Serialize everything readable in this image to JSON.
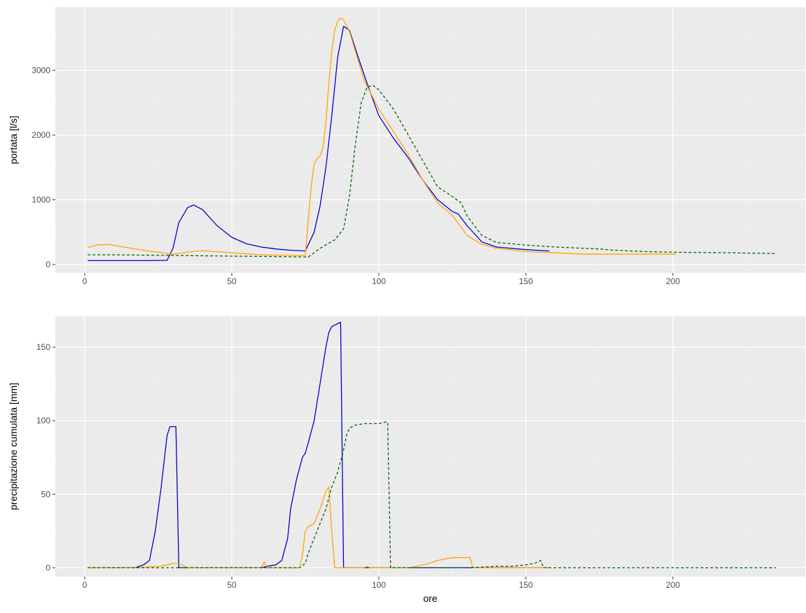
{
  "colors": {
    "panel_background": "#ebebeb",
    "grid_major": "#ffffff",
    "grid_minor": "#f5f5f5",
    "tick_text": "#4d4d4d",
    "axis_title_text": "#000000",
    "series_blue": "#0000cd",
    "series_orange": "#ffa500",
    "series_green": "#006400"
  },
  "chart_data": [
    {
      "type": "line",
      "title": "",
      "xlabel": "",
      "ylabel": "portata [l/s]",
      "xlim": [
        -10,
        245
      ],
      "ylim": [
        -130,
        3980
      ],
      "xticks": [
        0,
        50,
        100,
        150,
        200
      ],
      "xtick_labels": [
        "0",
        "50",
        "100",
        "150",
        "200"
      ],
      "yticks": [
        0,
        1000,
        2000,
        3000
      ],
      "ytick_labels": [
        "0",
        "1000",
        "2000",
        "3000"
      ],
      "grid": true,
      "legend": "none",
      "series": [
        {
          "color": "#0000cd",
          "dash": "solid",
          "x": [
            1,
            20,
            28,
            30,
            32,
            35,
            37,
            40,
            45,
            50,
            55,
            60,
            65,
            70,
            75,
            78,
            80,
            82,
            84,
            86,
            88,
            90,
            93,
            96,
            100,
            105,
            110,
            115,
            120,
            125,
            127,
            130,
            135,
            140,
            145,
            150,
            158
          ],
          "y": [
            60,
            60,
            65,
            250,
            650,
            880,
            920,
            850,
            600,
            420,
            320,
            270,
            240,
            220,
            210,
            500,
            900,
            1500,
            2300,
            3200,
            3680,
            3620,
            3200,
            2800,
            2300,
            1950,
            1650,
            1300,
            1000,
            820,
            780,
            600,
            350,
            270,
            250,
            230,
            210
          ]
        },
        {
          "color": "#ffa500",
          "dash": "solid",
          "x": [
            1,
            4,
            8,
            12,
            20,
            30,
            35,
            40,
            50,
            60,
            70,
            75,
            76,
            77,
            78,
            79,
            80,
            81,
            82,
            83,
            84,
            85,
            86,
            87,
            88,
            90,
            92,
            95,
            100,
            105,
            110,
            115,
            120,
            125,
            130,
            135,
            140,
            150,
            160,
            170,
            175,
            180,
            190,
            200,
            201
          ],
          "y": [
            260,
            300,
            310,
            280,
            220,
            160,
            190,
            215,
            180,
            150,
            140,
            140,
            700,
            1200,
            1550,
            1640,
            1680,
            1800,
            2200,
            2800,
            3300,
            3620,
            3760,
            3810,
            3780,
            3600,
            3300,
            2850,
            2400,
            2050,
            1700,
            1300,
            950,
            760,
            450,
            310,
            250,
            200,
            180,
            160,
            160,
            160,
            160,
            160,
            160
          ]
        },
        {
          "color": "#006400",
          "dash": "dashed",
          "x": [
            1,
            10,
            20,
            30,
            40,
            50,
            60,
            70,
            76,
            80,
            85,
            88,
            90,
            92,
            94,
            96,
            98,
            100,
            105,
            110,
            115,
            120,
            125,
            128,
            130,
            135,
            140,
            150,
            160,
            170,
            175,
            180,
            190,
            200,
            210,
            220,
            235
          ],
          "y": [
            150,
            150,
            145,
            140,
            135,
            130,
            125,
            120,
            115,
            250,
            380,
            550,
            1050,
            1850,
            2500,
            2740,
            2770,
            2700,
            2400,
            2000,
            1600,
            1200,
            1050,
            950,
            750,
            450,
            340,
            300,
            270,
            250,
            240,
            220,
            200,
            190,
            185,
            180,
            170
          ]
        }
      ]
    },
    {
      "type": "line",
      "title": "",
      "xlabel": "ore",
      "ylabel": "precipitazione cumulata [mm]",
      "xlim": [
        -10,
        245
      ],
      "ylim": [
        -6,
        171
      ],
      "xticks": [
        0,
        50,
        100,
        150,
        200
      ],
      "xtick_labels": [
        "0",
        "50",
        "100",
        "150",
        "200"
      ],
      "yticks": [
        0,
        50,
        100,
        150
      ],
      "ytick_labels": [
        "0",
        "50",
        "100",
        "150"
      ],
      "grid": true,
      "legend": "none",
      "series": [
        {
          "color": "#0000cd",
          "dash": "solid",
          "x": [
            1,
            10,
            17,
            20,
            22,
            24,
            26,
            28,
            29,
            30,
            31,
            32,
            35,
            50,
            60,
            62,
            65,
            67,
            69,
            70,
            72,
            74,
            75,
            76,
            78,
            80,
            82,
            83,
            84,
            85,
            86,
            87,
            88,
            90,
            100,
            120,
            140,
            150,
            158
          ],
          "y": [
            0,
            0,
            0,
            2,
            5,
            25,
            55,
            90,
            96,
            96,
            96,
            0,
            0,
            0,
            0,
            1,
            2,
            5,
            20,
            40,
            60,
            75,
            78,
            85,
            100,
            125,
            150,
            160,
            164,
            165,
            166,
            167,
            0,
            0,
            0,
            0,
            0,
            0,
            0
          ]
        },
        {
          "color": "#ffa500",
          "dash": "solid",
          "x": [
            1,
            17,
            25,
            28,
            30,
            31,
            32,
            35,
            60,
            61,
            62,
            65,
            73,
            74,
            75,
            76,
            78,
            80,
            82,
            83,
            84,
            85,
            90,
            95,
            96,
            97,
            100,
            110,
            115,
            117,
            120,
            125,
            130,
            131,
            132,
            140,
            150,
            158
          ],
          "y": [
            0,
            0,
            1,
            2,
            3,
            3,
            3,
            0,
            0,
            4,
            0,
            0,
            0,
            8,
            25,
            28,
            30,
            40,
            52,
            55,
            25,
            0,
            0,
            0,
            1,
            0,
            0,
            0,
            2,
            3,
            5,
            7,
            7,
            7,
            0,
            0,
            0,
            0
          ]
        },
        {
          "color": "#006400",
          "dash": "dashed",
          "x": [
            1,
            20,
            40,
            60,
            70,
            73,
            75,
            76,
            78,
            80,
            82,
            84,
            86,
            88,
            89,
            90,
            92,
            95,
            100,
            102,
            103,
            104,
            110,
            120,
            130,
            140,
            145,
            150,
            153,
            155,
            156,
            160,
            180,
            200,
            220,
            235
          ],
          "y": [
            0,
            0,
            0,
            0,
            0,
            0,
            3,
            10,
            20,
            30,
            40,
            55,
            65,
            80,
            90,
            95,
            97,
            98,
            98,
            99,
            99,
            0,
            0,
            0,
            0,
            1,
            1,
            2,
            3,
            5,
            0,
            0,
            0,
            0,
            0,
            0
          ]
        }
      ]
    }
  ]
}
